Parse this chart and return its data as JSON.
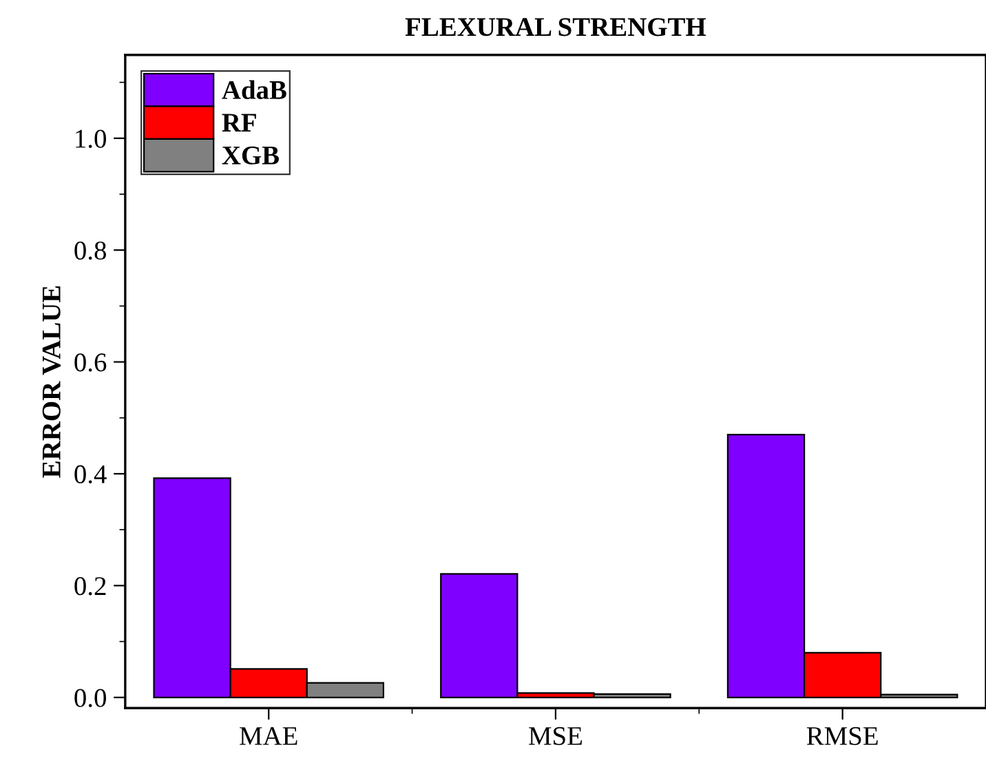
{
  "chart_data": {
    "type": "bar",
    "title": "FLEXURAL STRENGTH",
    "ylabel": "ERROR VALUE",
    "categories": [
      "MAE",
      "MSE",
      "RMSE"
    ],
    "series": [
      {
        "name": "AdaB",
        "color": "#7f00ff",
        "values": [
          0.392,
          0.221,
          0.47
        ]
      },
      {
        "name": "RF",
        "color": "#ff0000",
        "values": [
          0.051,
          0.008,
          0.08
        ]
      },
      {
        "name": "XGB",
        "color": "#808080",
        "values": [
          0.026,
          0.006,
          0.005
        ]
      }
    ],
    "ylim": [
      -0.019,
      1.149
    ],
    "yticks": [
      {
        "value": 0,
        "label": "0.0"
      },
      0.2,
      0.4,
      0.6,
      0.8,
      {
        "value": 1,
        "label": "1.0"
      }
    ],
    "grid": false,
    "legend": "top left"
  }
}
